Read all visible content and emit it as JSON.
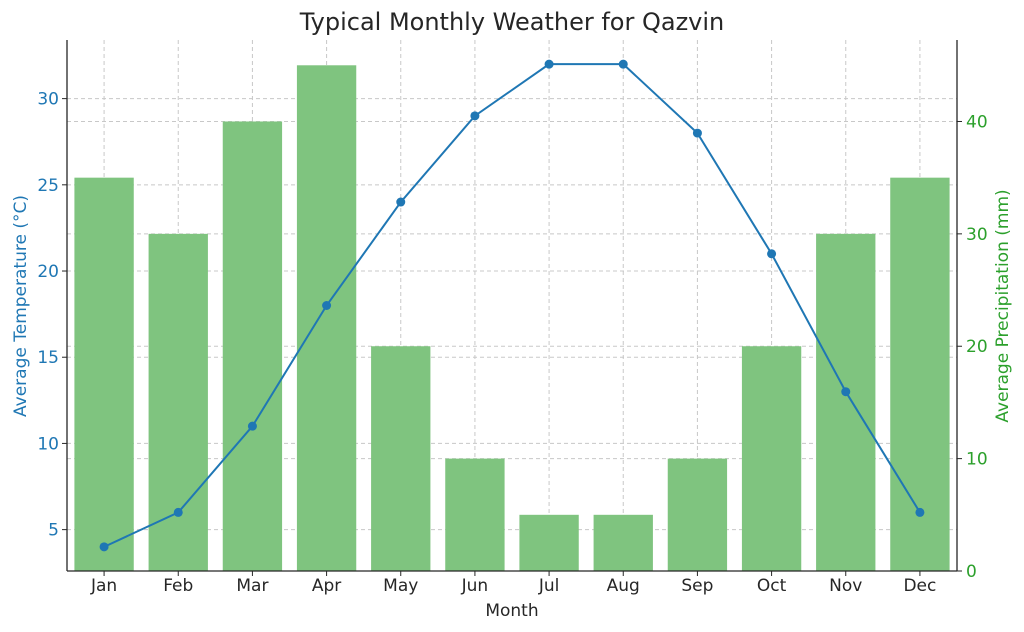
{
  "chart_data": {
    "type": "bar",
    "title": "Typical Monthly Weather for Qazvin",
    "xlabel": "Month",
    "categories": [
      "Jan",
      "Feb",
      "Mar",
      "Apr",
      "May",
      "Jun",
      "Jul",
      "Aug",
      "Sep",
      "Oct",
      "Nov",
      "Dec"
    ],
    "series": [
      {
        "name": "Average Precipitation (mm)",
        "type": "bar",
        "axis": "right",
        "values": [
          35,
          30,
          40,
          45,
          20,
          10,
          5,
          5,
          10,
          20,
          30,
          35
        ]
      },
      {
        "name": "Average Temperature (°C)",
        "type": "line",
        "axis": "left",
        "values": [
          4,
          6,
          11,
          18,
          24,
          29,
          32,
          32,
          28,
          21,
          13,
          6
        ]
      }
    ],
    "y_left": {
      "label": "Average Temperature (°C)",
      "range": [
        2.6,
        33.4
      ],
      "ticks": [
        5,
        10,
        15,
        20,
        25,
        30
      ]
    },
    "y_right": {
      "label": "Average Precipitation (mm)",
      "range": [
        0,
        47.25
      ],
      "ticks": [
        0,
        10,
        20,
        30,
        40
      ]
    },
    "grid": true,
    "colors": {
      "bars": "#7fc47f",
      "line": "#1f77b4",
      "left_axis": "#1f77b4",
      "right_axis": "#2ca02c"
    }
  }
}
